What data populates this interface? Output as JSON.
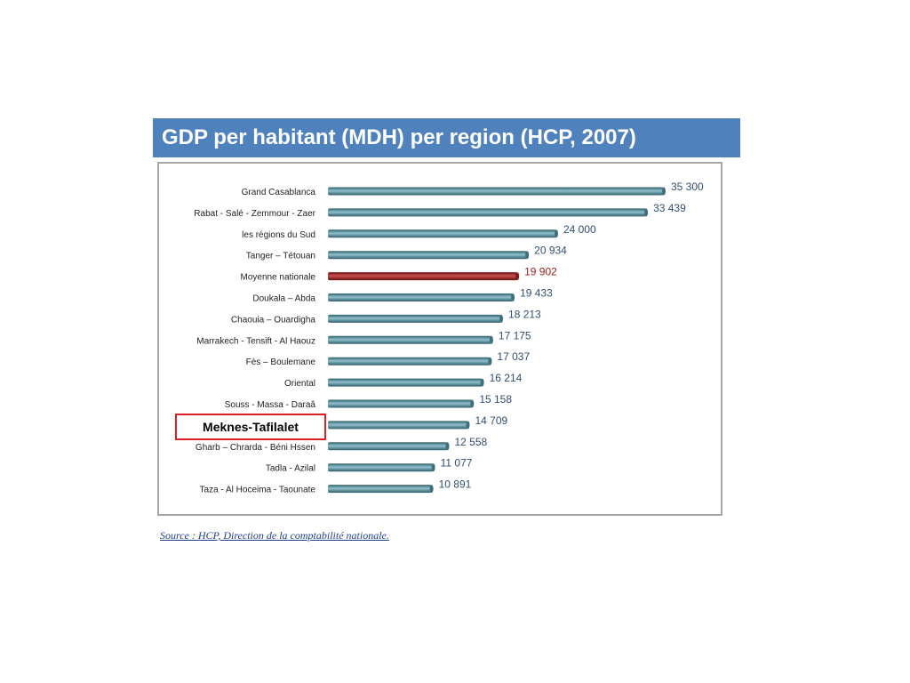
{
  "title": "GDP per habitant (MDH) per region (HCP, 2007)",
  "highlight_label": "Meknes-Tafilalet",
  "source": "Source : HCP, Direction de la comptabilité nationale.",
  "colors": {
    "title_bg": "#4f81bd",
    "bar": "#4a7f8c",
    "bar_highlight": "#8b1a1a",
    "label_highlight": "#a02020",
    "box_border": "#e02020"
  },
  "chart_data": {
    "type": "bar",
    "orientation": "horizontal",
    "title": "GDP per habitant (MDH) per region (HCP, 2007)",
    "xlim": [
      0,
      35300
    ],
    "grid": false,
    "legend": "none",
    "categories": [
      "Grand Casablanca",
      "Rabat - Salé - Zemmour - Zaer",
      "les régions du Sud",
      "Tanger – Tétouan",
      "Moyenne nationale",
      "Doukala – Abda",
      "Chaouia – Ouardigha",
      "Marrakech - Tensift - Al Haouz",
      "Fès – Boulemane",
      "Oriental",
      "Souss - Massa - Daraâ",
      "Meknès - Tafilalet",
      "Gharb – Chrarda - Béni Hssen",
      "Tadla - Azilal",
      "Taza - Al Hoceima - Taounate"
    ],
    "values": [
      35300,
      33439,
      24000,
      20934,
      19902,
      19433,
      18213,
      17175,
      17037,
      16214,
      15158,
      14709,
      12558,
      11077,
      10891
    ],
    "value_labels": [
      "35 300",
      "33 439",
      "24 000",
      "20 934",
      "19 902",
      "19 433",
      "18 213",
      "17 175",
      "17 037",
      "16 214",
      "15 158",
      "14 709",
      "12 558",
      "11 077",
      "10 891"
    ],
    "highlight_index": 4
  }
}
